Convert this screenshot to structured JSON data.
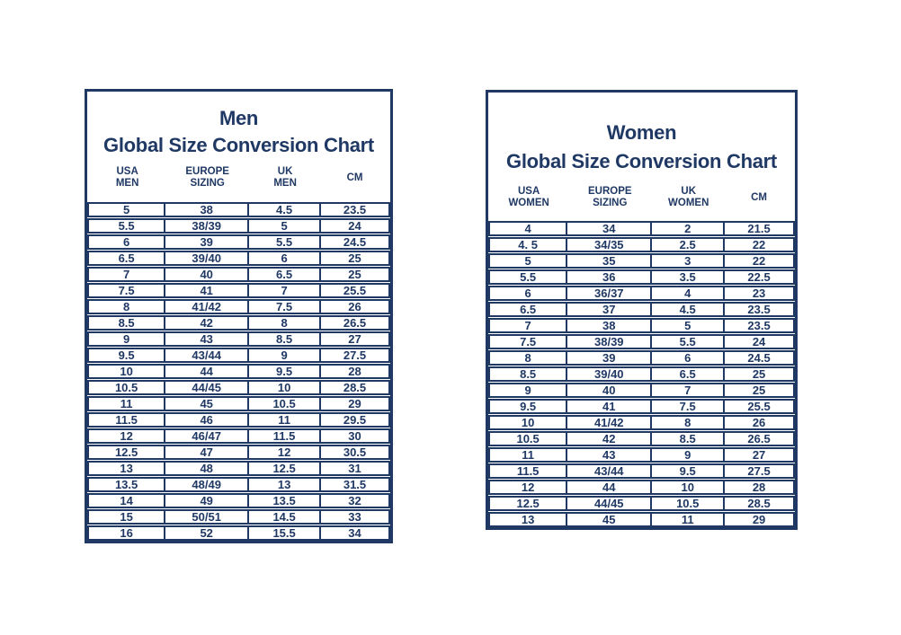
{
  "colors": {
    "navy_text": "#1f3864",
    "border": "#1f3864",
    "background": "#ffffff"
  },
  "charts": [
    {
      "id": "men",
      "title_line1": "Men",
      "title_line2": "Global Size Conversion Chart",
      "columns": [
        "USA\nMEN",
        "EUROPE\nSIZING",
        "UK\nMEN",
        "CM"
      ],
      "rows": [
        [
          "5",
          "38",
          "4.5",
          "23.5"
        ],
        [
          "5.5",
          "38/39",
          "5",
          "24"
        ],
        [
          "6",
          "39",
          "5.5",
          "24.5"
        ],
        [
          "6.5",
          "39/40",
          "6",
          "25"
        ],
        [
          "7",
          "40",
          "6.5",
          "25"
        ],
        [
          "7.5",
          "41",
          "7",
          "25.5"
        ],
        [
          "8",
          "41/42",
          "7.5",
          "26"
        ],
        [
          "8.5",
          "42",
          "8",
          "26.5"
        ],
        [
          "9",
          "43",
          "8.5",
          "27"
        ],
        [
          "9.5",
          "43/44",
          "9",
          "27.5"
        ],
        [
          "10",
          "44",
          "9.5",
          "28"
        ],
        [
          "10.5",
          "44/45",
          "10",
          "28.5"
        ],
        [
          "11",
          "45",
          "10.5",
          "29"
        ],
        [
          "11.5",
          "46",
          "11",
          "29.5"
        ],
        [
          "12",
          "46/47",
          "11.5",
          "30"
        ],
        [
          "12.5",
          "47",
          "12",
          "30.5"
        ],
        [
          "13",
          "48",
          "12.5",
          "31"
        ],
        [
          "13.5",
          "48/49",
          "13",
          "31.5"
        ],
        [
          "14",
          "49",
          "13.5",
          "32"
        ],
        [
          "15",
          "50/51",
          "14.5",
          "33"
        ],
        [
          "16",
          "52",
          "15.5",
          "34"
        ]
      ]
    },
    {
      "id": "women",
      "title_line1": "Women",
      "title_line2": "Global Size Conversion Chart",
      "columns": [
        "USA\nWOMEN",
        "EUROPE\nSIZING",
        "UK\nWOMEN",
        "CM"
      ],
      "rows": [
        [
          "4",
          "34",
          "2",
          "21.5"
        ],
        [
          "4. 5",
          "34/35",
          "2.5",
          "22"
        ],
        [
          "5",
          "35",
          "3",
          "22"
        ],
        [
          "5.5",
          "36",
          "3.5",
          "22.5"
        ],
        [
          "6",
          "36/37",
          "4",
          "23"
        ],
        [
          "6.5",
          "37",
          "4.5",
          "23.5"
        ],
        [
          "7",
          "38",
          "5",
          "23.5"
        ],
        [
          "7.5",
          "38/39",
          "5.5",
          "24"
        ],
        [
          "8",
          "39",
          "6",
          "24.5"
        ],
        [
          "8.5",
          "39/40",
          "6.5",
          "25"
        ],
        [
          "9",
          "40",
          "7",
          "25"
        ],
        [
          "9.5",
          "41",
          "7.5",
          "25.5"
        ],
        [
          "10",
          "41/42",
          "8",
          "26"
        ],
        [
          "10.5",
          "42",
          "8.5",
          "26.5"
        ],
        [
          "11",
          "43",
          "9",
          "27"
        ],
        [
          "11.5",
          "43/44",
          "9.5",
          "27.5"
        ],
        [
          "12",
          "44",
          "10",
          "28"
        ],
        [
          "12.5",
          "44/45",
          "10.5",
          "28.5"
        ],
        [
          "13",
          "45",
          "11",
          "29"
        ]
      ]
    }
  ]
}
